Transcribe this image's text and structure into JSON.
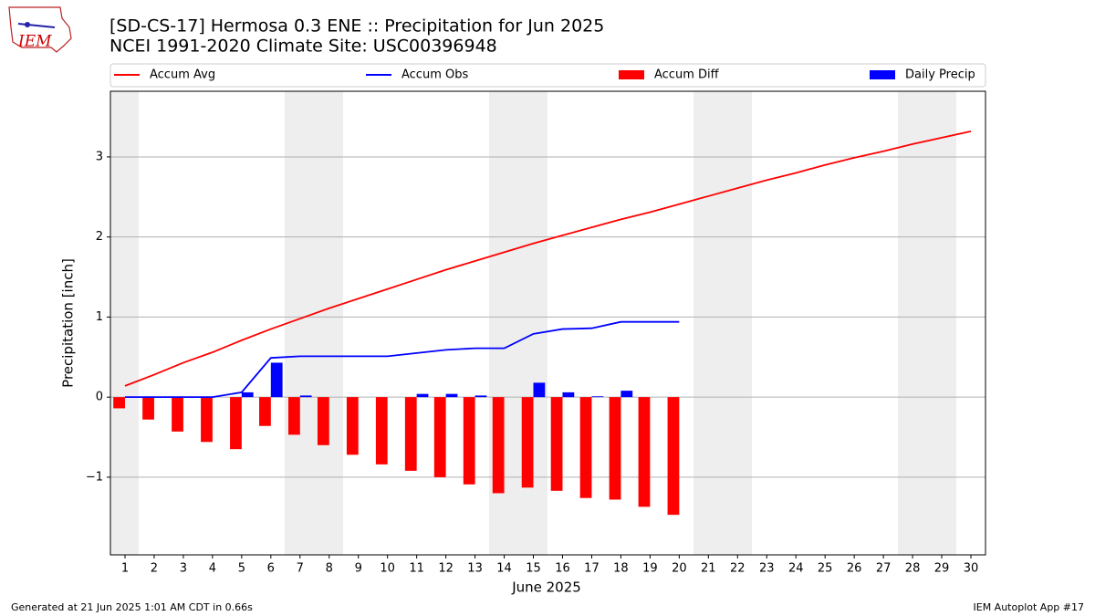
{
  "chart_data": {
    "type": "combo",
    "title": "[SD-CS-17] Hermosa 0.3 ENE :: Precipitation for Jun 2025",
    "subtitle": "NCEI 1991-2020 Climate Site: USC00396948",
    "x_label": "June 2025",
    "y_label": "Precipitation [inch]",
    "footer_left": "Generated at 21 Jun 2025 1:01 AM CDT in 0.66s",
    "footer_right": "IEM Autoplot App #17",
    "logo_text": "IEM",
    "x": [
      1,
      2,
      3,
      4,
      5,
      6,
      7,
      8,
      9,
      10,
      11,
      12,
      13,
      14,
      15,
      16,
      17,
      18,
      19,
      20,
      21,
      22,
      23,
      24,
      25,
      26,
      27,
      28,
      29,
      30
    ],
    "xlim": [
      0.5,
      30.5
    ],
    "xticks": [
      1,
      2,
      3,
      4,
      5,
      6,
      7,
      8,
      9,
      10,
      11,
      12,
      13,
      14,
      15,
      16,
      17,
      18,
      19,
      20,
      21,
      22,
      23,
      24,
      25,
      26,
      27,
      28,
      29,
      30
    ],
    "ylim": [
      -1.97,
      3.82
    ],
    "yticks": [
      {
        "value": -1,
        "label": "−1"
      },
      0,
      1,
      2,
      3
    ],
    "grid": true,
    "series": [
      {
        "name": "Accum Avg",
        "type": "line",
        "color": "#ff0000",
        "values": [
          0.14,
          0.28,
          0.43,
          0.56,
          0.71,
          0.85,
          0.98,
          1.11,
          1.23,
          1.35,
          1.47,
          1.59,
          1.7,
          1.81,
          1.92,
          2.02,
          2.12,
          2.22,
          2.31,
          2.41,
          2.51,
          2.61,
          2.71,
          2.8,
          2.9,
          2.99,
          3.07,
          3.16,
          3.24,
          3.32
        ]
      },
      {
        "name": "Accum Obs",
        "type": "line",
        "color": "#0000ff",
        "values": [
          0,
          0,
          0,
          0,
          0.06,
          0.49,
          0.51,
          0.51,
          0.51,
          0.51,
          0.55,
          0.59,
          0.61,
          0.61,
          0.79,
          0.85,
          0.86,
          0.94,
          0.94,
          0.94,
          null,
          null,
          null,
          null,
          null,
          null,
          null,
          null,
          null,
          null
        ]
      },
      {
        "name": "Accum Diff",
        "type": "bar",
        "color": "#ff0000",
        "values": [
          -0.14,
          -0.28,
          -0.43,
          -0.56,
          -0.65,
          -0.36,
          -0.47,
          -0.6,
          -0.72,
          -0.84,
          -0.92,
          -1.0,
          -1.09,
          -1.2,
          -1.13,
          -1.17,
          -1.26,
          -1.28,
          -1.37,
          -1.47,
          null,
          null,
          null,
          null,
          null,
          null,
          null,
          null,
          null,
          null
        ]
      },
      {
        "name": "Daily Precip",
        "type": "bar",
        "color": "#0000ff",
        "values": [
          0,
          0,
          0,
          0,
          0.06,
          0.43,
          0.02,
          0,
          0,
          0,
          0.04,
          0.04,
          0.02,
          0,
          0.18,
          0.06,
          0.01,
          0.08,
          0,
          0,
          null,
          null,
          null,
          null,
          null,
          null,
          null,
          null,
          null,
          null
        ]
      }
    ]
  }
}
